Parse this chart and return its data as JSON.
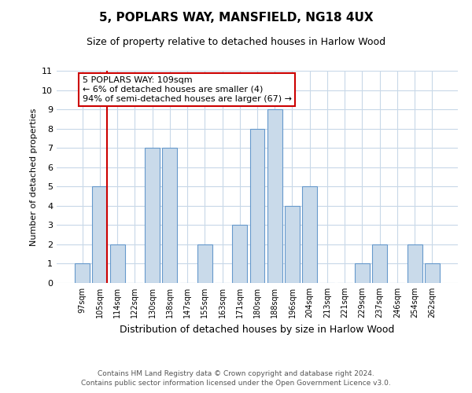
{
  "title": "5, POPLARS WAY, MANSFIELD, NG18 4UX",
  "subtitle": "Size of property relative to detached houses in Harlow Wood",
  "xlabel": "Distribution of detached houses by size in Harlow Wood",
  "ylabel": "Number of detached properties",
  "categories": [
    "97sqm",
    "105sqm",
    "114sqm",
    "122sqm",
    "130sqm",
    "138sqm",
    "147sqm",
    "155sqm",
    "163sqm",
    "171sqm",
    "180sqm",
    "188sqm",
    "196sqm",
    "204sqm",
    "213sqm",
    "221sqm",
    "229sqm",
    "237sqm",
    "246sqm",
    "254sqm",
    "262sqm"
  ],
  "values": [
    1,
    5,
    2,
    0,
    7,
    7,
    0,
    2,
    0,
    3,
    8,
    9,
    4,
    5,
    0,
    0,
    1,
    2,
    0,
    2,
    1
  ],
  "bar_color": "#c9daea",
  "bar_edge_color": "#6699cc",
  "highlight_line_color": "#cc0000",
  "ylim": [
    0,
    11
  ],
  "yticks": [
    0,
    1,
    2,
    3,
    4,
    5,
    6,
    7,
    8,
    9,
    10,
    11
  ],
  "annotation_text": "5 POPLARS WAY: 109sqm\n← 6% of detached houses are smaller (4)\n94% of semi-detached houses are larger (67) →",
  "annotation_box_color": "#ffffff",
  "annotation_box_edge": "#cc0000",
  "footer1": "Contains HM Land Registry data © Crown copyright and database right 2024.",
  "footer2": "Contains public sector information licensed under the Open Government Licence v3.0.",
  "grid_color": "#c8d8e8",
  "background_color": "#ffffff",
  "title_fontsize": 11,
  "subtitle_fontsize": 9,
  "xlabel_fontsize": 9,
  "ylabel_fontsize": 8,
  "tick_fontsize": 8,
  "xtick_fontsize": 7,
  "footer_fontsize": 6.5,
  "annot_fontsize": 8
}
